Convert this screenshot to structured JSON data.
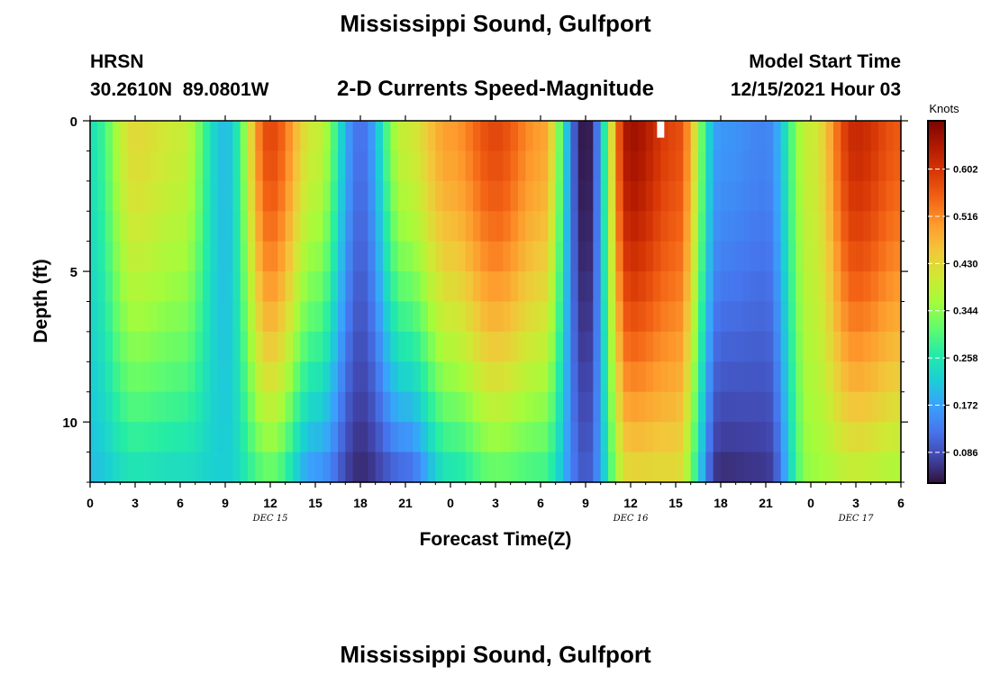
{
  "figure": {
    "title": "Mississippi Sound, Gulfport",
    "station_code": "HRSN",
    "coordinates": "30.2610N  89.0801W",
    "subtitle": "2-D Currents Speed-Magnitude",
    "model_start_label": "Model Start Time",
    "model_start_value": "12/15/2021 Hour 03",
    "bottom_title": "Mississippi Sound, Gulfport"
  },
  "colors": {
    "colormap": [
      "#30123b",
      "#4145ab",
      "#4675ed",
      "#39a2fc",
      "#1bcfd4",
      "#24eca6",
      "#61fc6c",
      "#a4fc3b",
      "#d1e834",
      "#f3c63a",
      "#fe9b2d",
      "#f36315",
      "#d93806",
      "#b11901",
      "#7a0402"
    ],
    "frame": "#000000",
    "gap": "#ffffff"
  },
  "chart_data": {
    "type": "heatmap",
    "title": "2-D Currents Speed-Magnitude",
    "xlabel": "Forecast Time(Z)",
    "ylabel": "Depth (ft)",
    "x_unit": "hours since 12/15/2021 00Z",
    "xlim": [
      0,
      54
    ],
    "ylim": [
      12,
      0
    ],
    "x_tick_values": [
      0,
      3,
      6,
      9,
      12,
      15,
      18,
      21,
      24,
      27,
      30,
      33,
      36,
      39,
      42,
      45,
      48,
      51,
      54
    ],
    "x_tick_labels": [
      "0",
      "3",
      "6",
      "9",
      "12",
      "15",
      "18",
      "21",
      "0",
      "3",
      "6",
      "9",
      "12",
      "15",
      "18",
      "21",
      "0",
      "3",
      "6"
    ],
    "y_tick_values": [
      0,
      5,
      10
    ],
    "y_tick_labels": [
      "0",
      "5",
      "10"
    ],
    "date_labels": [
      {
        "x": 12,
        "text": "DEC 15"
      },
      {
        "x": 36,
        "text": "DEC 16"
      },
      {
        "x": 51,
        "text": "DEC 17"
      }
    ],
    "depth_layers": [
      0,
      1,
      2,
      3,
      4,
      5,
      6,
      7,
      8,
      9,
      10,
      11,
      12
    ],
    "colorbar": {
      "label": "Knots",
      "ticks": [
        0.086,
        0.172,
        0.258,
        0.344,
        0.43,
        0.516,
        0.602
      ],
      "tick_labels": [
        "0.086",
        "0.172",
        "0.258",
        "0.344",
        "0.430",
        "0.516",
        "0.602"
      ],
      "range": [
        0.03,
        0.69
      ]
    },
    "speed_profile_knots": {
      "description": "Approximate surface and near-bottom speed (knots) every 3 h",
      "hours": [
        0,
        3,
        6,
        9,
        12,
        15,
        18,
        21,
        24,
        27,
        30,
        33,
        36,
        39,
        42,
        45,
        48,
        51,
        54
      ],
      "surface": [
        0.25,
        0.43,
        0.4,
        0.2,
        0.58,
        0.4,
        0.12,
        0.4,
        0.5,
        0.58,
        0.5,
        0.03,
        0.66,
        0.58,
        0.16,
        0.14,
        0.4,
        0.62,
        0.56
      ],
      "bottom": [
        0.2,
        0.24,
        0.23,
        0.22,
        0.3,
        0.15,
        0.05,
        0.1,
        0.24,
        0.3,
        0.28,
        0.1,
        0.42,
        0.42,
        0.05,
        0.06,
        0.35,
        0.38,
        0.36
      ]
    },
    "missing_cells": [
      {
        "hour": 38,
        "depth_from": 0,
        "depth_to": 0.5
      }
    ]
  }
}
